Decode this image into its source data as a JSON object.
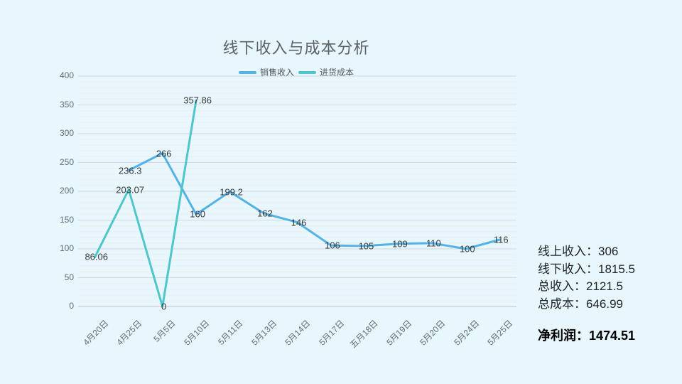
{
  "title": "线下收入与成本分析",
  "legend": {
    "items": [
      {
        "label": "销售收入",
        "color": "#55b2e6"
      },
      {
        "label": "进货成本",
        "color": "#4ec6cb"
      }
    ]
  },
  "chart_data": {
    "type": "line",
    "title": "线下收入与成本分析",
    "categories": [
      "4月20日",
      "4月25日",
      "5月5日",
      "5月10日",
      "5月11日",
      "5月13日",
      "5月14日",
      "5月17日",
      "五月18日",
      "5月19日",
      "5月20日",
      "5月24日",
      "5月25日"
    ],
    "series": [
      {
        "name": "销售收入",
        "color": "#55b2e6",
        "values": [
          null,
          236.3,
          266,
          160,
          199.2,
          162,
          146,
          106,
          105,
          109,
          110,
          100,
          116
        ]
      },
      {
        "name": "进货成本",
        "color": "#4ec6cb",
        "values": [
          86.06,
          203.07,
          0,
          357.86,
          null,
          null,
          null,
          null,
          null,
          null,
          null,
          null,
          null
        ]
      }
    ],
    "xlabel": "",
    "ylabel": "",
    "ylim": [
      0,
      400
    ],
    "y_ticks": [
      0,
      50,
      100,
      150,
      200,
      250,
      300,
      350,
      400
    ],
    "y_minor_step": 10,
    "grid": "on",
    "legend_position": "top",
    "data_labels": "on"
  },
  "summary_panel": {
    "lines": [
      {
        "label": "线上收入：",
        "value": "306",
        "bold": false
      },
      {
        "label": "线下收入：",
        "value": "1815.5",
        "bold": false
      },
      {
        "label": "总收入：",
        "value": "2121.5",
        "bold": false
      },
      {
        "label": "总成本：",
        "value": "646.99",
        "bold": false
      },
      {
        "label": "净利润：",
        "value": "1474.51",
        "bold": true
      }
    ]
  },
  "colors": {
    "background": "#e7f7fd",
    "major_gridline": "#d3d7d9",
    "axis_line": "#c0c4c6",
    "minor_gridline": "#efedeb",
    "title_text": "#5d6267",
    "axis_text": "#5e6e78",
    "data_label_text": "#343a3e",
    "series_sales": "#55b2e6",
    "series_cost": "#4ec6cb"
  }
}
